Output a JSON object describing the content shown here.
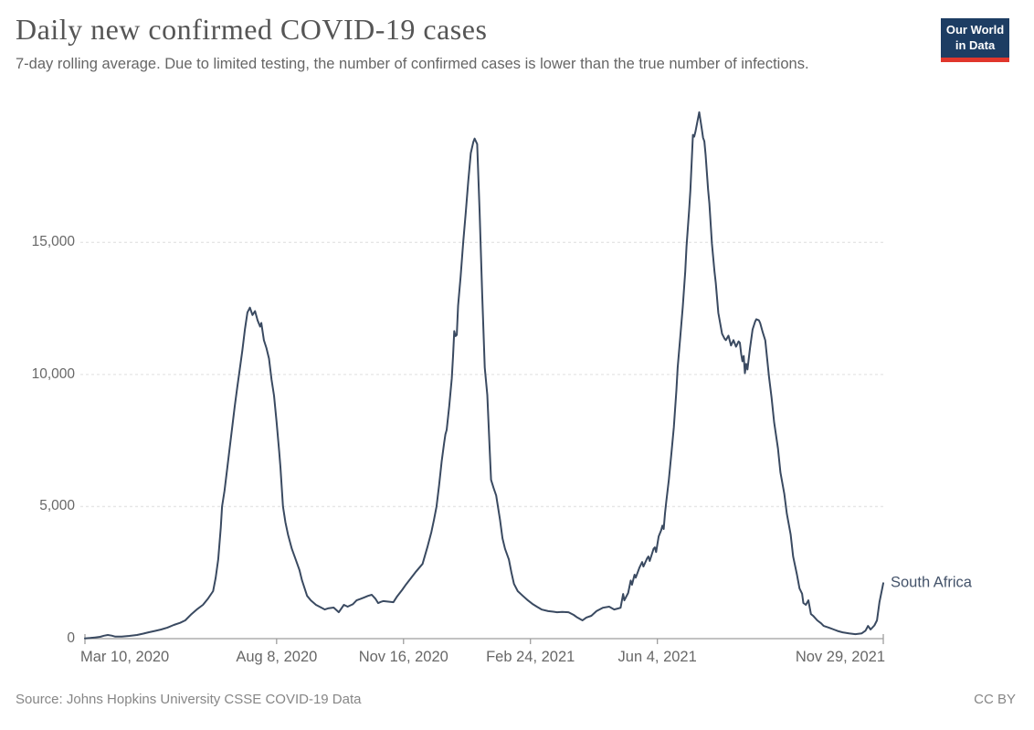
{
  "header": {
    "title": "Daily new confirmed COVID-19 cases",
    "subtitle": "7-day rolling average. Due to limited testing, the number of confirmed cases is lower than the true number of infections.",
    "logo": {
      "line1": "Our World",
      "line2": "in Data",
      "bg_color": "#1d3d63",
      "stripe_color": "#e0362c",
      "text_color": "#ffffff"
    }
  },
  "footer": {
    "source": "Source: Johns Hopkins University CSSE COVID-19 Data",
    "license": "CC BY"
  },
  "chart_data": {
    "type": "line",
    "title": "Daily new confirmed COVID-19 cases",
    "subtitle": "7-day rolling average. Due to limited testing, the number of confirmed cases is lower than the true number of infections.",
    "entity_label": "South Africa",
    "line_color": "#3a4a61",
    "grid_color": "#e6e6e6",
    "axis_color": "#9e9e9e",
    "grid": "dashed-horizontal",
    "legend_position": "end-of-line-label",
    "xlabel": "",
    "ylabel": "",
    "x_axis": {
      "start": "2020-03-10",
      "end": "2021-11-29",
      "ticks": [
        {
          "date": "2020-03-10",
          "label": "Mar 10, 2020",
          "align": "start"
        },
        {
          "date": "2020-08-08",
          "label": "Aug 8, 2020",
          "align": "middle"
        },
        {
          "date": "2020-11-16",
          "label": "Nov 16, 2020",
          "align": "middle"
        },
        {
          "date": "2021-02-24",
          "label": "Feb 24, 2021",
          "align": "middle"
        },
        {
          "date": "2021-06-04",
          "label": "Jun 4, 2021",
          "align": "middle"
        },
        {
          "date": "2021-11-29",
          "label": "Nov 29, 2021",
          "align": "end"
        }
      ]
    },
    "y_axis": {
      "ticks": [
        {
          "value": 0,
          "label": "0"
        },
        {
          "value": 5000,
          "label": "5,000"
        },
        {
          "value": 10000,
          "label": "10,000"
        },
        {
          "value": 15000,
          "label": "15,000"
        }
      ],
      "ylim": [
        0,
        20000
      ]
    },
    "series": [
      {
        "name": "South Africa",
        "points": [
          [
            "2020-03-10",
            10
          ],
          [
            "2020-03-14",
            25
          ],
          [
            "2020-03-18",
            45
          ],
          [
            "2020-03-22",
            70
          ],
          [
            "2020-03-25",
            110
          ],
          [
            "2020-03-28",
            140
          ],
          [
            "2020-03-31",
            115
          ],
          [
            "2020-04-03",
            75
          ],
          [
            "2020-04-08",
            80
          ],
          [
            "2020-04-14",
            105
          ],
          [
            "2020-04-20",
            140
          ],
          [
            "2020-04-25",
            190
          ],
          [
            "2020-04-29",
            240
          ],
          [
            "2020-05-04",
            290
          ],
          [
            "2020-05-09",
            345
          ],
          [
            "2020-05-14",
            420
          ],
          [
            "2020-05-19",
            520
          ],
          [
            "2020-05-24",
            600
          ],
          [
            "2020-05-28",
            690
          ],
          [
            "2020-06-02",
            930
          ],
          [
            "2020-06-06",
            1100
          ],
          [
            "2020-06-11",
            1280
          ],
          [
            "2020-06-15",
            1520
          ],
          [
            "2020-06-19",
            1800
          ],
          [
            "2020-06-21",
            2300
          ],
          [
            "2020-06-23",
            3000
          ],
          [
            "2020-06-25",
            4200
          ],
          [
            "2020-06-26",
            5000
          ],
          [
            "2020-06-28",
            5600
          ],
          [
            "2020-06-30",
            6400
          ],
          [
            "2020-07-02",
            7200
          ],
          [
            "2020-07-04",
            8000
          ],
          [
            "2020-07-06",
            8800
          ],
          [
            "2020-07-08",
            9500
          ],
          [
            "2020-07-10",
            10200
          ],
          [
            "2020-07-12",
            10900
          ],
          [
            "2020-07-14",
            11700
          ],
          [
            "2020-07-16",
            12350
          ],
          [
            "2020-07-18",
            12530
          ],
          [
            "2020-07-20",
            12250
          ],
          [
            "2020-07-22",
            12400
          ],
          [
            "2020-07-24",
            12050
          ],
          [
            "2020-07-26",
            11810
          ],
          [
            "2020-07-27",
            11950
          ],
          [
            "2020-07-29",
            11300
          ],
          [
            "2020-07-31",
            11000
          ],
          [
            "2020-08-02",
            10600
          ],
          [
            "2020-08-04",
            9800
          ],
          [
            "2020-08-06",
            9200
          ],
          [
            "2020-08-08",
            8200
          ],
          [
            "2020-08-10",
            7100
          ],
          [
            "2020-08-11",
            6500
          ],
          [
            "2020-08-13",
            5000
          ],
          [
            "2020-08-15",
            4400
          ],
          [
            "2020-08-17",
            3940
          ],
          [
            "2020-08-20",
            3400
          ],
          [
            "2020-08-23",
            3000
          ],
          [
            "2020-08-26",
            2600
          ],
          [
            "2020-08-28",
            2210
          ],
          [
            "2020-09-01",
            1620
          ],
          [
            "2020-09-04",
            1450
          ],
          [
            "2020-09-08",
            1280
          ],
          [
            "2020-09-12",
            1180
          ],
          [
            "2020-09-15",
            1105
          ],
          [
            "2020-09-18",
            1150
          ],
          [
            "2020-09-22",
            1175
          ],
          [
            "2020-09-26",
            1000
          ],
          [
            "2020-09-30",
            1280
          ],
          [
            "2020-10-03",
            1210
          ],
          [
            "2020-10-07",
            1300
          ],
          [
            "2020-10-10",
            1450
          ],
          [
            "2020-10-13",
            1500
          ],
          [
            "2020-10-16",
            1560
          ],
          [
            "2020-10-19",
            1620
          ],
          [
            "2020-10-22",
            1660
          ],
          [
            "2020-10-25",
            1500
          ],
          [
            "2020-10-27",
            1345
          ],
          [
            "2020-10-29",
            1390
          ],
          [
            "2020-10-31",
            1420
          ],
          [
            "2020-11-04",
            1400
          ],
          [
            "2020-11-08",
            1380
          ],
          [
            "2020-11-11",
            1600
          ],
          [
            "2020-11-15",
            1850
          ],
          [
            "2020-11-18",
            2050
          ],
          [
            "2020-11-22",
            2300
          ],
          [
            "2020-11-26",
            2550
          ],
          [
            "2020-12-01",
            2830
          ],
          [
            "2020-12-05",
            3500
          ],
          [
            "2020-12-08",
            4040
          ],
          [
            "2020-12-10",
            4500
          ],
          [
            "2020-12-12",
            5000
          ],
          [
            "2020-12-14",
            5800
          ],
          [
            "2020-12-16",
            6700
          ],
          [
            "2020-12-18",
            7400
          ],
          [
            "2020-12-19",
            7730
          ],
          [
            "2020-12-20",
            7900
          ],
          [
            "2020-12-22",
            8800
          ],
          [
            "2020-12-24",
            9850
          ],
          [
            "2020-12-25",
            10700
          ],
          [
            "2020-12-26",
            11640
          ],
          [
            "2020-12-27",
            11450
          ],
          [
            "2020-12-28",
            11500
          ],
          [
            "2020-12-29",
            12600
          ],
          [
            "2020-12-31",
            13710
          ],
          [
            "2021-01-02",
            15000
          ],
          [
            "2021-01-04",
            16130
          ],
          [
            "2021-01-06",
            17300
          ],
          [
            "2021-01-08",
            18380
          ],
          [
            "2021-01-10",
            18800
          ],
          [
            "2021-01-11",
            18930
          ],
          [
            "2021-01-13",
            18720
          ],
          [
            "2021-01-15",
            16130
          ],
          [
            "2021-01-17",
            13020
          ],
          [
            "2021-01-19",
            10260
          ],
          [
            "2021-01-21",
            9220
          ],
          [
            "2021-01-23",
            7000
          ],
          [
            "2021-01-24",
            6010
          ],
          [
            "2021-01-26",
            5700
          ],
          [
            "2021-01-28",
            5420
          ],
          [
            "2021-01-31",
            4500
          ],
          [
            "2021-02-02",
            3800
          ],
          [
            "2021-02-04",
            3400
          ],
          [
            "2021-02-07",
            3000
          ],
          [
            "2021-02-09",
            2500
          ],
          [
            "2021-02-11",
            2070
          ],
          [
            "2021-02-14",
            1800
          ],
          [
            "2021-02-18",
            1620
          ],
          [
            "2021-02-22",
            1450
          ],
          [
            "2021-02-26",
            1300
          ],
          [
            "2021-03-01",
            1210
          ],
          [
            "2021-03-05",
            1100
          ],
          [
            "2021-03-10",
            1040
          ],
          [
            "2021-03-14",
            1020
          ],
          [
            "2021-03-17",
            1000
          ],
          [
            "2021-03-21",
            1010
          ],
          [
            "2021-03-26",
            1000
          ],
          [
            "2021-03-30",
            900
          ],
          [
            "2021-04-02",
            800
          ],
          [
            "2021-04-06",
            690
          ],
          [
            "2021-04-09",
            800
          ],
          [
            "2021-04-13",
            865
          ],
          [
            "2021-04-17",
            1040
          ],
          [
            "2021-04-22",
            1170
          ],
          [
            "2021-04-27",
            1210
          ],
          [
            "2021-05-01",
            1105
          ],
          [
            "2021-05-04",
            1140
          ],
          [
            "2021-05-06",
            1170
          ],
          [
            "2021-05-08",
            1690
          ],
          [
            "2021-05-09",
            1450
          ],
          [
            "2021-05-12",
            1730
          ],
          [
            "2021-05-14",
            2200
          ],
          [
            "2021-05-15",
            2040
          ],
          [
            "2021-05-17",
            2420
          ],
          [
            "2021-05-18",
            2310
          ],
          [
            "2021-05-21",
            2700
          ],
          [
            "2021-05-23",
            2900
          ],
          [
            "2021-05-24",
            2730
          ],
          [
            "2021-05-27",
            3050
          ],
          [
            "2021-05-28",
            3110
          ],
          [
            "2021-05-29",
            2940
          ],
          [
            "2021-06-01",
            3400
          ],
          [
            "2021-06-02",
            3455
          ],
          [
            "2021-06-03",
            3280
          ],
          [
            "2021-06-05",
            3870
          ],
          [
            "2021-06-07",
            4100
          ],
          [
            "2021-06-08",
            4280
          ],
          [
            "2021-06-09",
            4150
          ],
          [
            "2021-06-10",
            4730
          ],
          [
            "2021-06-11",
            5180
          ],
          [
            "2021-06-13",
            6000
          ],
          [
            "2021-06-15",
            7000
          ],
          [
            "2021-06-17",
            8000
          ],
          [
            "2021-06-19",
            9400
          ],
          [
            "2021-06-20",
            10260
          ],
          [
            "2021-06-22",
            11400
          ],
          [
            "2021-06-24",
            12570
          ],
          [
            "2021-06-26",
            13900
          ],
          [
            "2021-06-27",
            14850
          ],
          [
            "2021-06-29",
            16200
          ],
          [
            "2021-06-30",
            16960
          ],
          [
            "2021-07-02",
            19070
          ],
          [
            "2021-07-03",
            19000
          ],
          [
            "2021-07-04",
            19200
          ],
          [
            "2021-07-07",
            19930
          ],
          [
            "2021-07-09",
            19300
          ],
          [
            "2021-07-10",
            18960
          ],
          [
            "2021-07-11",
            18830
          ],
          [
            "2021-07-12",
            18310
          ],
          [
            "2021-07-14",
            17000
          ],
          [
            "2021-07-15",
            16480
          ],
          [
            "2021-07-17",
            14950
          ],
          [
            "2021-07-19",
            13900
          ],
          [
            "2021-07-20",
            13470
          ],
          [
            "2021-07-22",
            12330
          ],
          [
            "2021-07-25",
            11540
          ],
          [
            "2021-07-27",
            11350
          ],
          [
            "2021-07-28",
            11300
          ],
          [
            "2021-07-30",
            11470
          ],
          [
            "2021-08-01",
            11100
          ],
          [
            "2021-08-03",
            11300
          ],
          [
            "2021-08-05",
            11050
          ],
          [
            "2021-08-07",
            11250
          ],
          [
            "2021-08-08",
            11200
          ],
          [
            "2021-08-09",
            10780
          ],
          [
            "2021-08-10",
            10500
          ],
          [
            "2021-08-11",
            10700
          ],
          [
            "2021-08-12",
            10050
          ],
          [
            "2021-08-13",
            10400
          ],
          [
            "2021-08-14",
            10190
          ],
          [
            "2021-08-16",
            11000
          ],
          [
            "2021-08-18",
            11700
          ],
          [
            "2021-08-20",
            12000
          ],
          [
            "2021-08-21",
            12090
          ],
          [
            "2021-08-23",
            12050
          ],
          [
            "2021-08-24",
            11950
          ],
          [
            "2021-08-26",
            11600
          ],
          [
            "2021-08-28",
            11290
          ],
          [
            "2021-08-31",
            9910
          ],
          [
            "2021-09-02",
            9120
          ],
          [
            "2021-09-04",
            8190
          ],
          [
            "2021-09-07",
            7200
          ],
          [
            "2021-09-09",
            6290
          ],
          [
            "2021-09-12",
            5490
          ],
          [
            "2021-09-14",
            4730
          ],
          [
            "2021-09-17",
            3940
          ],
          [
            "2021-09-19",
            3110
          ],
          [
            "2021-09-22",
            2420
          ],
          [
            "2021-09-24",
            1900
          ],
          [
            "2021-09-26",
            1700
          ],
          [
            "2021-09-27",
            1350
          ],
          [
            "2021-09-29",
            1280
          ],
          [
            "2021-10-01",
            1450
          ],
          [
            "2021-10-03",
            930
          ],
          [
            "2021-10-05",
            850
          ],
          [
            "2021-10-08",
            690
          ],
          [
            "2021-10-11",
            580
          ],
          [
            "2021-10-13",
            480
          ],
          [
            "2021-10-17",
            420
          ],
          [
            "2021-10-21",
            345
          ],
          [
            "2021-10-24",
            290
          ],
          [
            "2021-10-28",
            240
          ],
          [
            "2021-11-02",
            200
          ],
          [
            "2021-11-07",
            170
          ],
          [
            "2021-11-12",
            200
          ],
          [
            "2021-11-15",
            300
          ],
          [
            "2021-11-17",
            480
          ],
          [
            "2021-11-19",
            345
          ],
          [
            "2021-11-22",
            500
          ],
          [
            "2021-11-24",
            690
          ],
          [
            "2021-11-26",
            1380
          ],
          [
            "2021-11-29",
            2100
          ]
        ]
      }
    ]
  }
}
